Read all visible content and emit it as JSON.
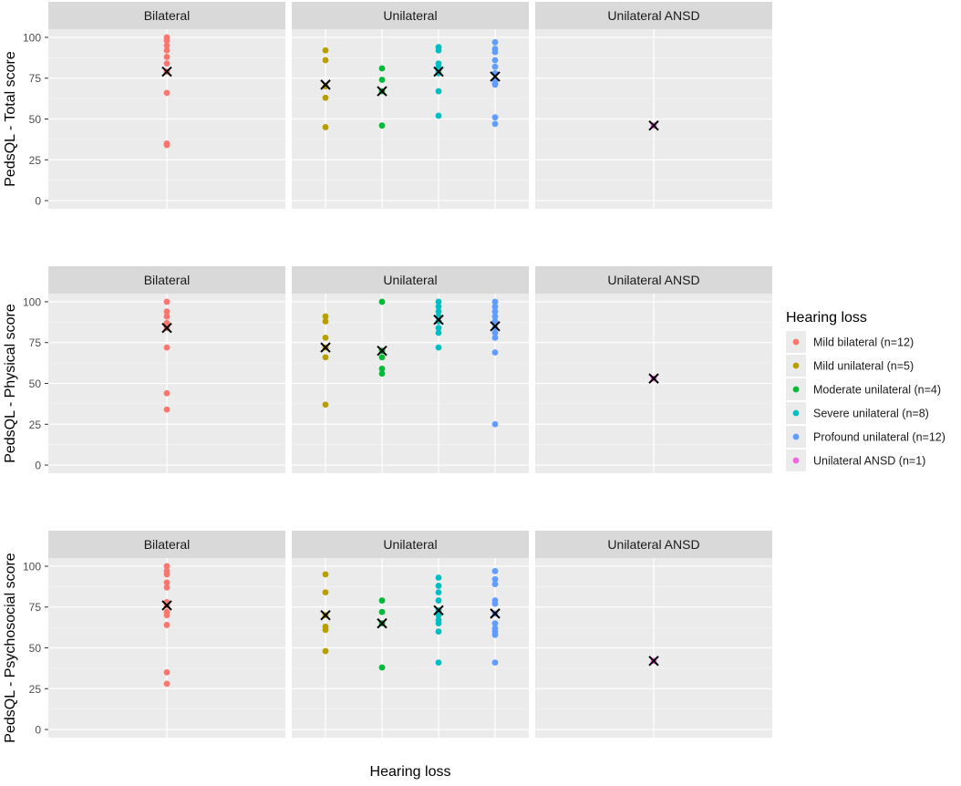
{
  "chart_data": {
    "type": "scatter",
    "x_axis_label": "Hearing loss",
    "facet_columns": [
      "Bilateral",
      "Unilateral",
      "Unilateral ANSD"
    ],
    "yticks": [
      0,
      25,
      50,
      75,
      100
    ],
    "ylim": [
      -5,
      105
    ],
    "legend": {
      "title": "Hearing loss",
      "position": "right",
      "entries": [
        {
          "label": "Mild bilateral (n=12)",
          "color": "#F8766D"
        },
        {
          "label": "Mild unilateral (n=5)",
          "color": "#B79F00"
        },
        {
          "label": "Moderate unilateral (n=4)",
          "color": "#00BA38"
        },
        {
          "label": "Severe unilateral (n=8)",
          "color": "#00BFC4"
        },
        {
          "label": "Profound unilateral (n=12)",
          "color": "#619CFF"
        },
        {
          "label": "Unilateral ANSD (n=1)",
          "color": "#F564E3"
        }
      ]
    },
    "rows": [
      {
        "ylabel": "PedsQL - Total score",
        "groups": [
          {
            "facet": 0,
            "color": "#F8766D",
            "values": [
              100,
              98,
              95,
              92,
              88,
              84,
              79,
              66,
              35,
              34
            ],
            "mean": 79
          },
          {
            "facet": 1,
            "color": "#B79F00",
            "values": [
              92,
              86,
              70,
              63,
              45
            ],
            "mean": 71
          },
          {
            "facet": 1,
            "color": "#00BA38",
            "values": [
              81,
              74,
              67,
              46
            ],
            "mean": 67
          },
          {
            "facet": 1,
            "color": "#00BFC4",
            "values": [
              94,
              92,
              84,
              82,
              80,
              78,
              67,
              52
            ],
            "mean": 79
          },
          {
            "facet": 1,
            "color": "#619CFF",
            "values": [
              97,
              93,
              91,
              86,
              82,
              78,
              74,
              72,
              71,
              51,
              47
            ],
            "mean": 76
          },
          {
            "facet": 2,
            "color": "#F564E3",
            "values": [
              46
            ],
            "mean": 46
          }
        ]
      },
      {
        "ylabel": "PedsQL - Physical score",
        "groups": [
          {
            "facet": 0,
            "color": "#F8766D",
            "values": [
              100,
              94,
              91,
              87,
              84,
              72,
              44,
              34
            ],
            "mean": 84
          },
          {
            "facet": 1,
            "color": "#B79F00",
            "values": [
              91,
              88,
              78,
              72,
              66,
              37
            ],
            "mean": 72
          },
          {
            "facet": 1,
            "color": "#00BA38",
            "values": [
              100,
              70,
              66,
              59,
              56
            ],
            "mean": 70
          },
          {
            "facet": 1,
            "color": "#00BFC4",
            "values": [
              100,
              97,
              94,
              91,
              88,
              84,
              81,
              72
            ],
            "mean": 89
          },
          {
            "facet": 1,
            "color": "#619CFF",
            "values": [
              100,
              97,
              94,
              91,
              88,
              84,
              81,
              78,
              69,
              25
            ],
            "mean": 85
          },
          {
            "facet": 2,
            "color": "#F564E3",
            "values": [
              53
            ],
            "mean": 53
          }
        ]
      },
      {
        "ylabel": "PedsQL - Psychosocial score",
        "groups": [
          {
            "facet": 0,
            "color": "#F8766D",
            "values": [
              100,
              97,
              95,
              90,
              87,
              78,
              76,
              72,
              70,
              64,
              35,
              28
            ],
            "mean": 76
          },
          {
            "facet": 1,
            "color": "#B79F00",
            "values": [
              95,
              84,
              70,
              63,
              61,
              48
            ],
            "mean": 70
          },
          {
            "facet": 1,
            "color": "#00BA38",
            "values": [
              79,
              72,
              65,
              38
            ],
            "mean": 65
          },
          {
            "facet": 1,
            "color": "#00BFC4",
            "values": [
              93,
              88,
              84,
              79,
              73,
              70,
              67,
              65,
              60,
              41
            ],
            "mean": 73
          },
          {
            "facet": 1,
            "color": "#619CFF",
            "values": [
              97,
              92,
              89,
              79,
              77,
              71,
              65,
              62,
              60,
              58,
              41
            ],
            "mean": 71
          },
          {
            "facet": 2,
            "color": "#F564E3",
            "values": [
              42
            ],
            "mean": 42
          }
        ]
      }
    ]
  }
}
